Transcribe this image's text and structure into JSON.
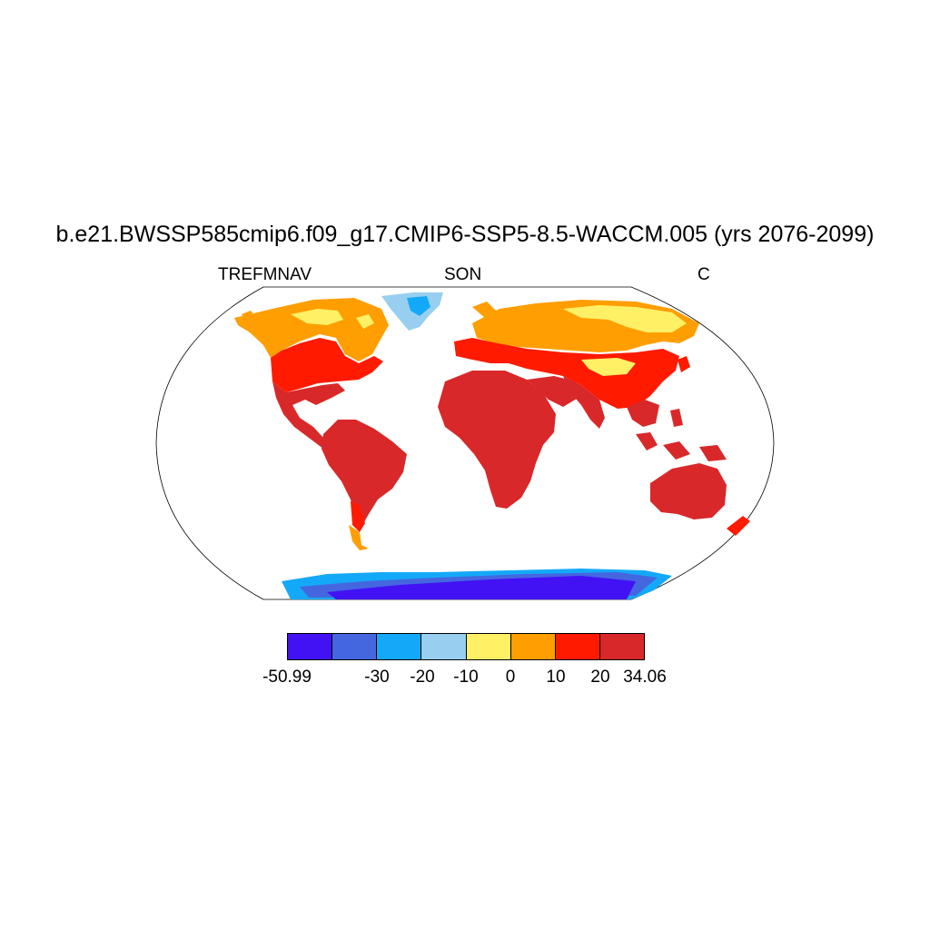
{
  "title": "b.e21.BWSSP585cmip6.f09_g17.CMIP6-SSP5-8.5-WACCM.005 (yrs 2076-2099)",
  "subtitle_left": "TREFMNAV",
  "subtitle_center": "SON",
  "subtitle_right": "C",
  "colorbar": {
    "colors": [
      "#4212f5",
      "#4467e0",
      "#14a9f8",
      "#98cff0",
      "#fff066",
      "#ff9e00",
      "#ff1a00",
      "#d9282a"
    ],
    "labels": [
      "-50.99",
      "-30",
      "-20",
      "-10",
      "0",
      "10",
      "20",
      "34.06"
    ]
  },
  "map": {
    "projection": "robinson",
    "field": "TREFMNAV",
    "season": "SON",
    "units": "C"
  }
}
